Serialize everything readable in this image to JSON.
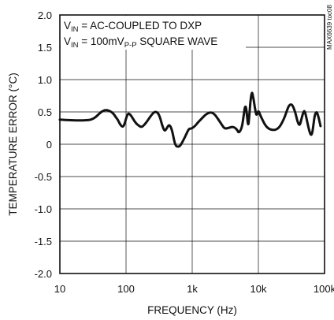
{
  "chart_data": {
    "type": "line",
    "xscale": "log",
    "xlim": [
      10,
      100000
    ],
    "ylim": [
      -2.0,
      2.0
    ],
    "grid": true,
    "xlabel": "FREQUENCY (Hz)",
    "ylabel": "TEMPERATURE ERROR (°C)",
    "x_ticks": [
      {
        "value": 10,
        "label": "10"
      },
      {
        "value": 100,
        "label": "100"
      },
      {
        "value": 1000,
        "label": "1k"
      },
      {
        "value": 10000,
        "label": "10k"
      },
      {
        "value": 100000,
        "label": "100k"
      }
    ],
    "y_ticks": [
      {
        "value": 2.0,
        "label": "2.0"
      },
      {
        "value": 1.5,
        "label": "1.5"
      },
      {
        "value": 1.0,
        "label": "1.0"
      },
      {
        "value": 0.5,
        "label": "0.5"
      },
      {
        "value": 0,
        "label": "0"
      },
      {
        "value": -0.5,
        "label": "-0.5"
      },
      {
        "value": -1.0,
        "label": "-1.0"
      },
      {
        "value": -1.5,
        "label": "-1.5"
      },
      {
        "value": -2.0,
        "label": "-2.0"
      }
    ],
    "annotations": {
      "line1": {
        "main": "V",
        "sub": "IN",
        "rest": " = AC-COUPLED TO DXP"
      },
      "line2": {
        "main": "V",
        "sub": "IN",
        "mid": " = 100mV",
        "sub2": "P-P",
        "rest": " SQUARE WAVE"
      }
    },
    "side_label": "MAX6639 toc08",
    "series": [
      {
        "x": [
          10,
          15,
          20,
          25,
          30,
          35,
          40,
          45,
          50,
          55,
          60,
          65,
          70,
          75,
          80,
          85,
          90,
          95,
          100,
          105,
          110,
          120,
          130,
          140,
          150,
          170,
          190,
          210,
          230,
          250,
          270,
          290,
          310,
          330,
          350,
          380,
          410,
          440,
          470,
          500,
          530,
          560,
          600,
          650,
          700,
          750,
          800,
          850,
          900,
          950,
          1000,
          1100,
          1200,
          1400,
          1600,
          1800,
          2000,
          2200,
          2500,
          2800,
          3100,
          3500,
          4000,
          4400,
          4800,
          5000,
          5300,
          5700,
          6000,
          6300,
          6600,
          7000,
          7300,
          7600,
          8000,
          8300,
          8700,
          9000,
          9300,
          9600,
          10000,
          10500,
          11000,
          12000,
          13000,
          14000,
          15000,
          17000,
          19000,
          21000,
          23000,
          25000,
          27000,
          29000,
          31000,
          33000,
          36000,
          39000,
          42000,
          45000,
          48000,
          50000,
          53000,
          56000,
          59000,
          62000,
          65000,
          68000,
          71000,
          75000,
          78000,
          81000,
          84000,
          87000
        ],
        "y": [
          0.38,
          0.37,
          0.37,
          0.37,
          0.38,
          0.42,
          0.48,
          0.52,
          0.53,
          0.52,
          0.5,
          0.47,
          0.42,
          0.38,
          0.32,
          0.28,
          0.27,
          0.31,
          0.4,
          0.46,
          0.48,
          0.44,
          0.38,
          0.33,
          0.3,
          0.26,
          0.3,
          0.36,
          0.42,
          0.47,
          0.5,
          0.5,
          0.47,
          0.4,
          0.3,
          0.2,
          0.24,
          0.3,
          0.28,
          0.2,
          0.07,
          -0.02,
          -0.04,
          -0.03,
          0.02,
          0.08,
          0.14,
          0.2,
          0.24,
          0.24,
          0.25,
          0.28,
          0.33,
          0.4,
          0.46,
          0.49,
          0.49,
          0.46,
          0.38,
          0.3,
          0.24,
          0.25,
          0.27,
          0.26,
          0.22,
          0.18,
          0.2,
          0.28,
          0.45,
          0.6,
          0.55,
          0.25,
          0.45,
          0.68,
          0.82,
          0.74,
          0.62,
          0.52,
          0.45,
          0.47,
          0.52,
          0.47,
          0.42,
          0.34,
          0.28,
          0.25,
          0.23,
          0.22,
          0.23,
          0.27,
          0.34,
          0.42,
          0.52,
          0.6,
          0.62,
          0.6,
          0.5,
          0.35,
          0.28,
          0.4,
          0.5,
          0.52,
          0.42,
          0.3,
          0.2,
          0.14,
          0.16,
          0.3,
          0.45,
          0.5,
          0.48,
          0.42,
          0.35,
          0.28
        ]
      }
    ]
  }
}
